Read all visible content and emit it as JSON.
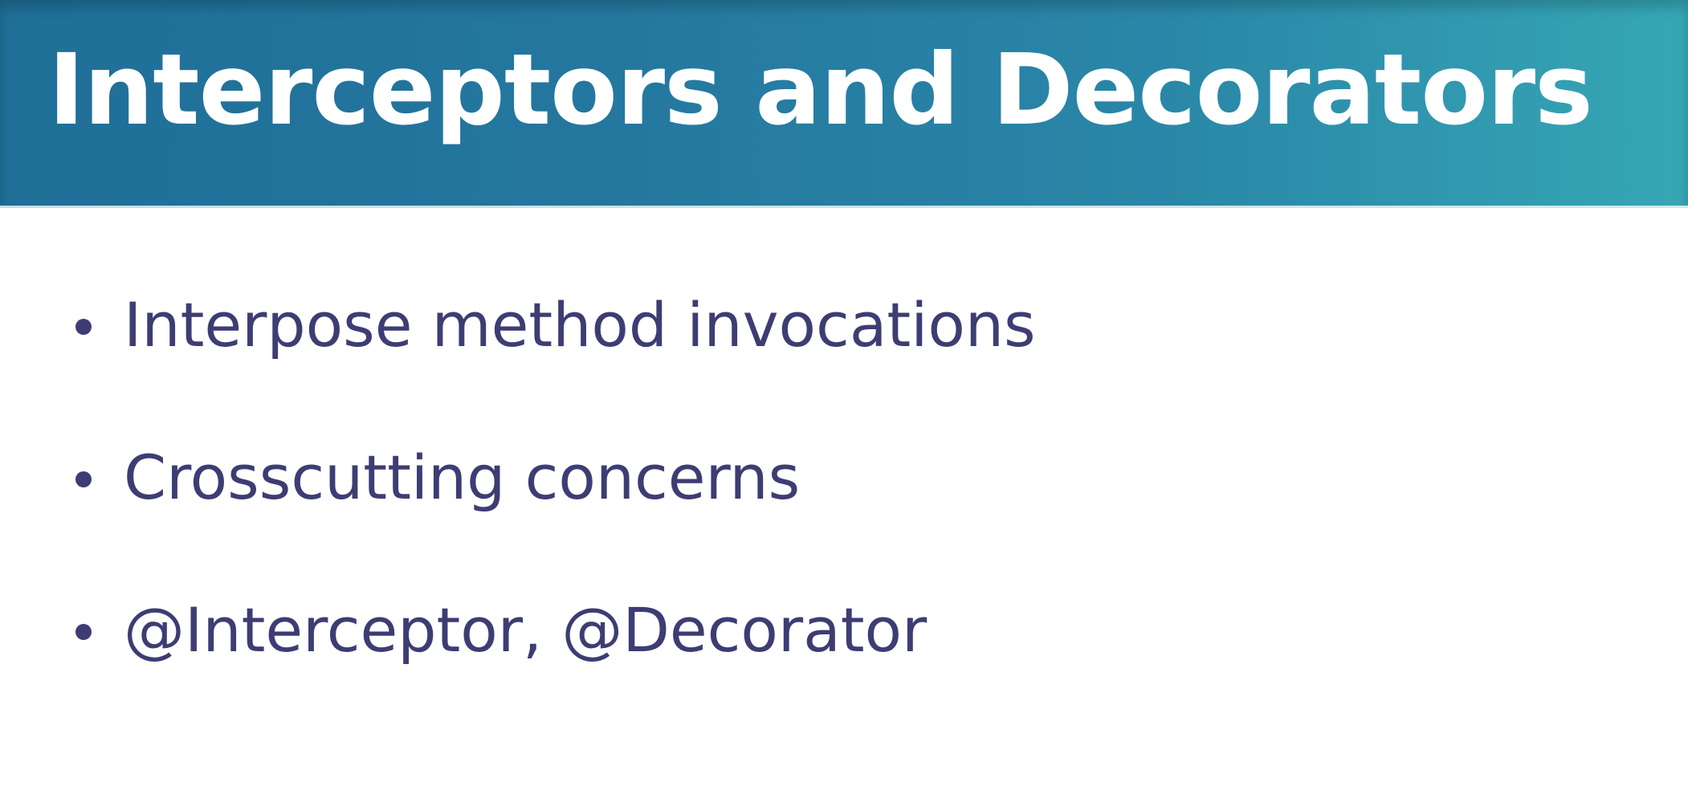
{
  "slide": {
    "title": "Interceptors and Decorators",
    "bullets": [
      "Interpose method invocations",
      "Crosscutting concerns",
      "@Interceptor, @Decorator"
    ]
  },
  "colors": {
    "header_gradient_start": "#1f6f98",
    "header_gradient_end": "#36a7b5",
    "title_text": "#ffffff",
    "bullet_text": "#3d3d74",
    "background": "#ffffff"
  },
  "icons": {
    "bullet": "bullet-dot"
  }
}
